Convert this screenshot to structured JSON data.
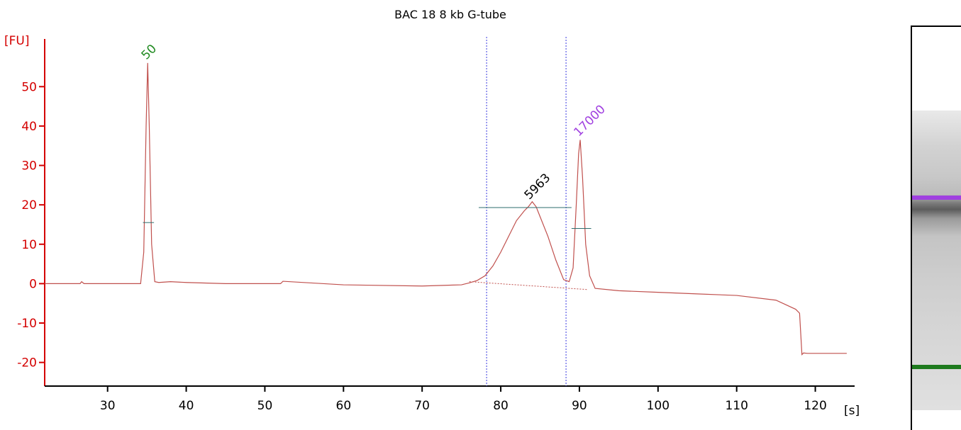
{
  "chart_data": {
    "type": "line",
    "title": "BAC 18 8 kb G-tube",
    "ylabel": "[FU]",
    "xlabel": "[s]",
    "xlim": [
      22,
      125
    ],
    "ylim": [
      -26,
      63
    ],
    "xticks": [
      30,
      40,
      50,
      60,
      70,
      80,
      90,
      100,
      110,
      120
    ],
    "yticks": [
      -20,
      -10,
      0,
      10,
      20,
      30,
      40,
      50
    ],
    "grid": false,
    "series": [
      {
        "color": "#c0504d",
        "x": [
          22,
          26.5,
          26.7,
          27,
          34.2,
          34.6,
          34.9,
          35.1,
          35.3,
          35.6,
          36.0,
          36.5,
          38,
          40,
          45,
          52,
          52.3,
          60,
          70,
          75,
          76,
          77,
          78,
          79,
          80,
          81,
          82,
          83,
          83.5,
          84,
          84.5,
          85,
          86,
          87,
          88,
          88.7,
          89.2,
          89.6,
          89.9,
          90.1,
          90.4,
          90.8,
          91.3,
          92,
          95,
          100,
          105,
          110,
          115,
          117.5,
          118.0,
          118.3,
          118.5,
          119,
          124
        ],
        "y": [
          0,
          0,
          0.5,
          0,
          0,
          8,
          40,
          56,
          40,
          10,
          0.5,
          0.3,
          0.5,
          0.3,
          0,
          0,
          0.6,
          -0.3,
          -0.6,
          -0.3,
          0.2,
          0.8,
          2.0,
          4.5,
          8,
          12,
          16,
          18.5,
          19.5,
          20.8,
          19.5,
          17,
          12,
          6,
          1,
          0.5,
          4,
          20,
          33,
          36.5,
          27,
          10,
          2,
          -1.2,
          -1.8,
          -2.2,
          -2.6,
          -3,
          -4.2,
          -6.5,
          -7.5,
          -18,
          -17.6,
          -17.7,
          -17.7
        ]
      }
    ],
    "baseline_segment": {
      "x": [
        76,
        91
      ],
      "y": [
        0.5,
        -1.5
      ]
    },
    "region_markers_s": [
      78.2,
      88.3
    ],
    "peaks": [
      {
        "label": "50",
        "x": 35.1,
        "y": 56,
        "color": "#228b22",
        "half_height": 15.5,
        "width_x": [
          34.5,
          35.9
        ]
      },
      {
        "label": "5963",
        "x": 83.8,
        "y": 20.5,
        "color": "#000000",
        "half_height": 19.3,
        "width_x": 77.2,
        "width_x2": 89.0
      },
      {
        "label": "17000",
        "x": 90.1,
        "y": 36.5,
        "color": "#a040e0",
        "half_height": 14,
        "width_x": [
          89.0,
          91.5
        ]
      }
    ]
  },
  "gel": {
    "bands": [
      {
        "name": "upper-marker",
        "color": "#a040e0"
      },
      {
        "name": "lower-marker",
        "color": "#1e7b1e"
      }
    ]
  }
}
